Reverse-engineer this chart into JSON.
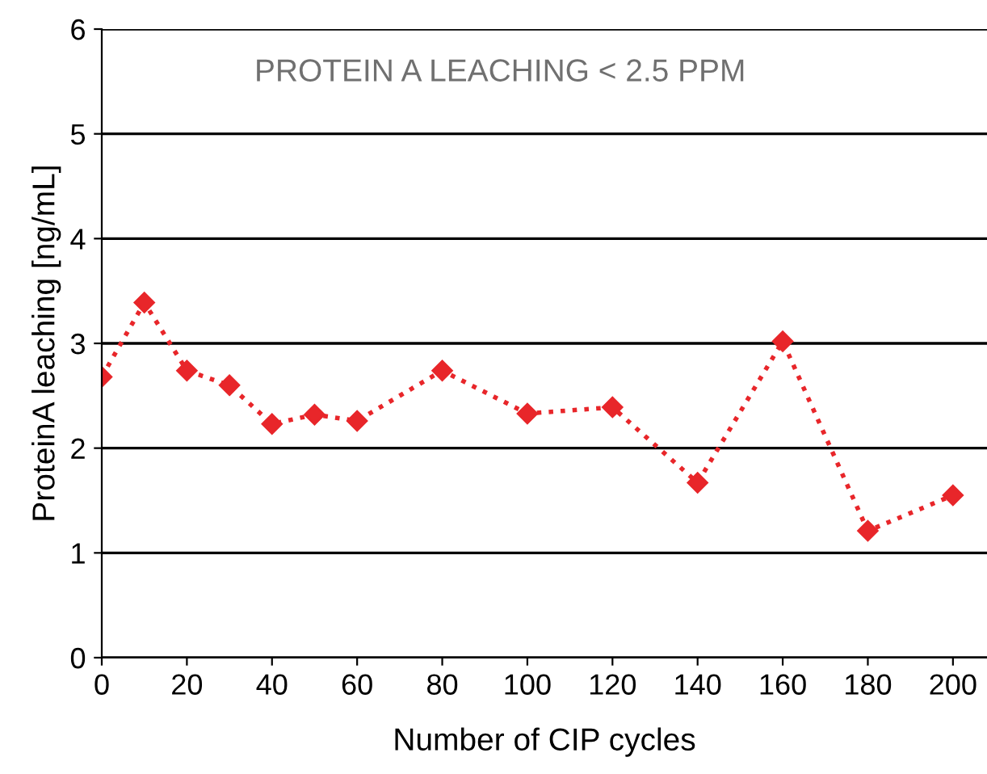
{
  "chart_data": {
    "type": "line",
    "xlabel": "Number of CIP cycles",
    "ylabel": "ProteinA leaching [ng/mL]",
    "annotations": [
      "PROTEIN A LEACHING < 2.5 PPM"
    ],
    "x": [
      0,
      10,
      20,
      30,
      40,
      50,
      60,
      80,
      100,
      120,
      140,
      160,
      180,
      200
    ],
    "series": [
      {
        "color": "#e8262a",
        "values": [
          2.68,
          3.39,
          2.74,
          2.6,
          2.23,
          2.32,
          2.26,
          2.74,
          2.33,
          2.39,
          1.67,
          3.02,
          1.21,
          1.55
        ]
      }
    ],
    "xlim": [
      0,
      208
    ],
    "ylim": [
      0,
      6
    ],
    "xticks": [
      0,
      20,
      40,
      60,
      80,
      100,
      120,
      140,
      160,
      180,
      200
    ],
    "yticks": [
      0,
      1,
      2,
      3,
      4,
      5,
      6
    ],
    "grid": "y",
    "marker": "diamond",
    "line_style": "dotted"
  }
}
